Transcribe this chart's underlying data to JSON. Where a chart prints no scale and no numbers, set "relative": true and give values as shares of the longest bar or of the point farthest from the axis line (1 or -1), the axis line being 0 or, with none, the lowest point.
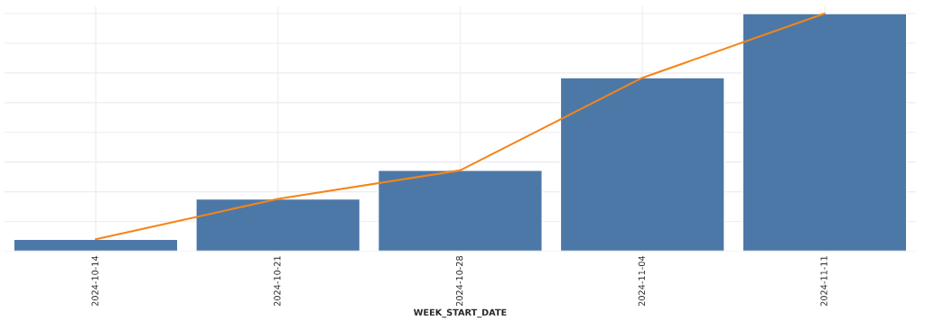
{
  "chart_data": {
    "type": "bar",
    "xlabel": "WEEK_START_DATE",
    "relative": true,
    "grid": true,
    "categories": [
      "2024-10-14",
      "2024-10-21",
      "2024-10-28",
      "2024-11-04",
      "2024-11-11"
    ],
    "series": [
      {
        "color": "#4c78a8",
        "values": [
          0.05,
          0.22,
          0.34,
          0.73,
          1.0
        ]
      },
      {
        "type": "line",
        "color": "#f58518",
        "values": [
          0.05,
          0.22,
          0.34,
          0.73,
          1.0
        ]
      }
    ]
  }
}
